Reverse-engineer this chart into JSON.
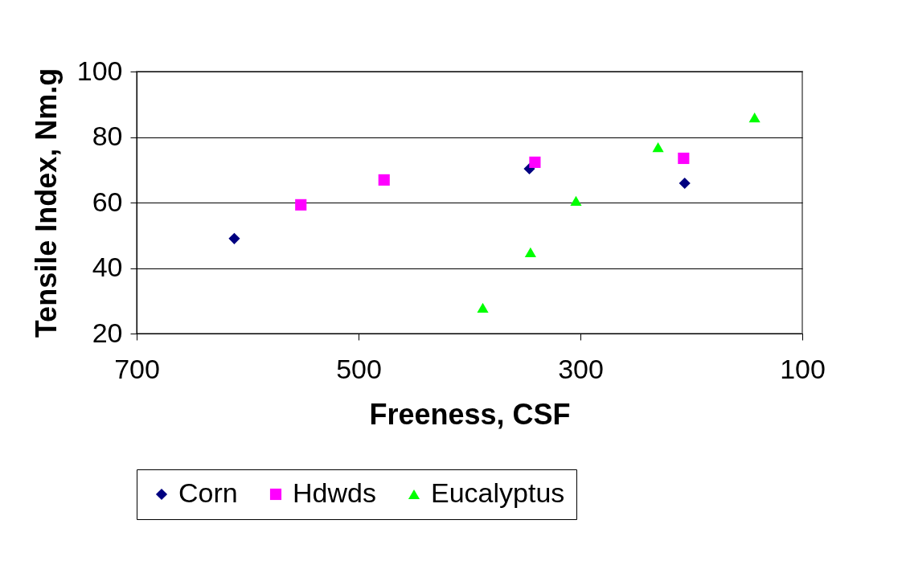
{
  "chart_data": {
    "type": "scatter",
    "xlabel": "Freeness, CSF",
    "ylabel": "Tensile Index, Nm.g",
    "xlim": [
      700,
      100
    ],
    "xticks": [
      700,
      500,
      300,
      100
    ],
    "ylim": [
      20,
      100
    ],
    "yticks": [
      20,
      40,
      60,
      80,
      100
    ],
    "grid": "y",
    "legend": "bottom",
    "series": [
      {
        "name": "Corn",
        "color": "#000080",
        "marker": "diamond",
        "x": [
          612,
          346,
          206
        ],
        "values": [
          49,
          70.3,
          65.9
        ]
      },
      {
        "name": "Hdwds",
        "color": "#ff00ff",
        "marker": "square",
        "x": [
          552,
          477,
          341,
          207
        ],
        "values": [
          59.3,
          66.9,
          72.3,
          73.5
        ]
      },
      {
        "name": "Eucalyptus",
        "color": "#00ff00",
        "marker": "triangle",
        "x": [
          388,
          345,
          304,
          230,
          143
        ],
        "values": [
          27.9,
          44.8,
          60.5,
          76.9,
          86
        ]
      }
    ]
  }
}
